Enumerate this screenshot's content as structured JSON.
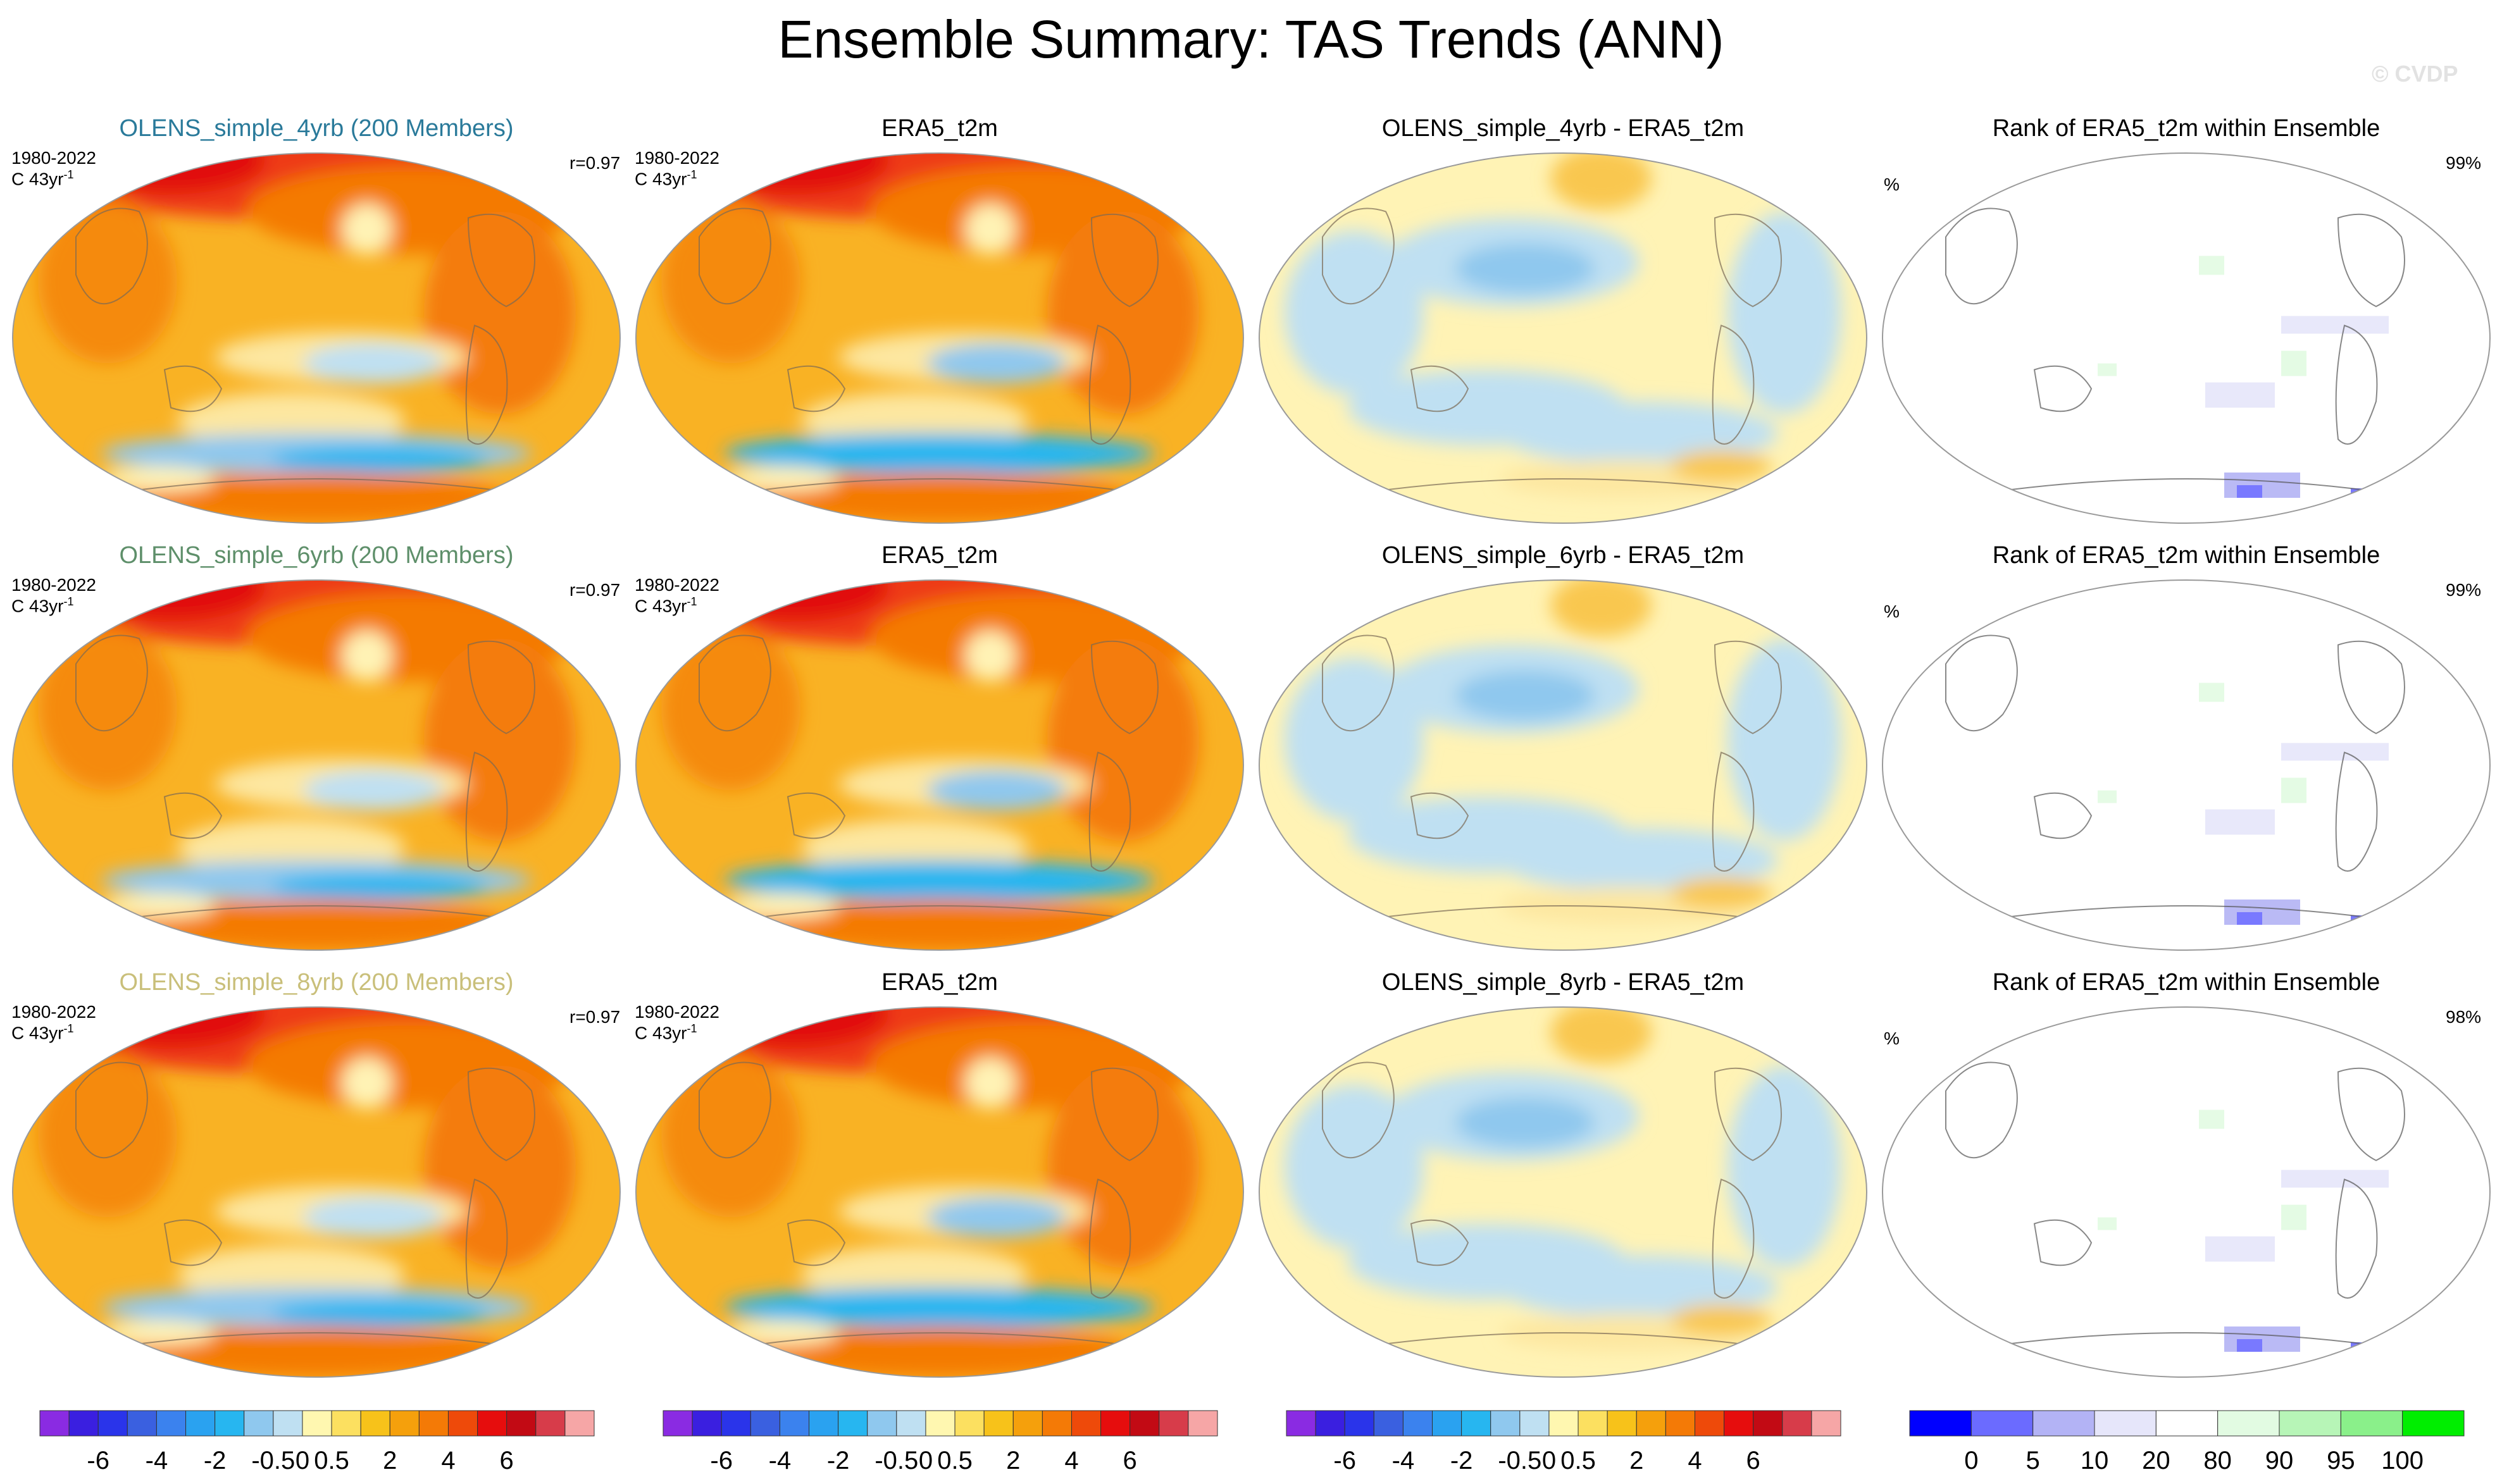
{
  "title": "Ensemble Summary: TAS Trends (ANN)",
  "watermark": "© CVDP",
  "colors": {
    "row_titles": [
      "#2a7a9a",
      "#5e8f6a",
      "#c9bf7a"
    ]
  },
  "rows": [
    {
      "ensemble_title": "OLENS_simple_4yrb (200 Members)",
      "period": "1980-2022",
      "units_prefix": "C 43yr",
      "units_exp": "-1",
      "pattern_corr": "r=0.97",
      "obs_title": "ERA5_t2m",
      "obs_period": "1980-2022",
      "obs_units_prefix": "C 43yr",
      "obs_units_exp": "-1",
      "diff_title": "OLENS_simple_4yrb - ERA5_t2m",
      "rank_title": "Rank of ERA5_t2m within Ensemble",
      "rank_unit": "%",
      "rank_pct": "99%"
    },
    {
      "ensemble_title": "OLENS_simple_6yrb (200 Members)",
      "period": "1980-2022",
      "units_prefix": "C 43yr",
      "units_exp": "-1",
      "pattern_corr": "r=0.97",
      "obs_title": "ERA5_t2m",
      "obs_period": "1980-2022",
      "obs_units_prefix": "C 43yr",
      "obs_units_exp": "-1",
      "diff_title": "OLENS_simple_6yrb - ERA5_t2m",
      "rank_title": "Rank of ERA5_t2m within Ensemble",
      "rank_unit": "%",
      "rank_pct": "99%"
    },
    {
      "ensemble_title": "OLENS_simple_8yrb (200 Members)",
      "period": "1980-2022",
      "units_prefix": "C 43yr",
      "units_exp": "-1",
      "pattern_corr": "r=0.97",
      "obs_title": "ERA5_t2m",
      "obs_period": "1980-2022",
      "obs_units_prefix": "C 43yr",
      "obs_units_exp": "-1",
      "diff_title": "OLENS_simple_8yrb - ERA5_t2m",
      "rank_title": "Rank of ERA5_t2m within Ensemble",
      "rank_unit": "%",
      "rank_pct": "98%"
    }
  ],
  "chart_data": {
    "type": "heatmap",
    "title": "Ensemble Summary: TAS Trends (ANN)",
    "panels_per_row": [
      "ensemble mean trend",
      "observed trend",
      "difference",
      "rank"
    ],
    "trend_colorbar": {
      "colors": [
        "#8a2be2",
        "#3a1fe0",
        "#2a34ea",
        "#3a60e0",
        "#3b82ee",
        "#2aa2f0",
        "#27b6f0",
        "#8fc8ee",
        "#bfe0f2",
        "#fff7b0",
        "#fce060",
        "#f7c21a",
        "#f5a00c",
        "#f47a06",
        "#ee4a0a",
        "#e60d0d",
        "#c20a14",
        "#d73c4a",
        "#f6a6a6"
      ],
      "tick_labels": [
        "-6",
        "-4",
        "-2",
        "-0.5",
        "0",
        "0.5",
        "2",
        "4",
        "6"
      ],
      "tick_boundary_index": [
        2,
        4,
        6,
        8,
        9,
        10,
        12,
        14,
        16
      ]
    },
    "rank_colorbar": {
      "colors": [
        "#0000ff",
        "#6b6bff",
        "#b3b3f5",
        "#e6e6fa",
        "#ffffff",
        "#e2fbe2",
        "#b7f5b7",
        "#8af08a",
        "#00ee00"
      ],
      "tick_labels": [
        "0",
        "5",
        "10",
        "20",
        "80",
        "90",
        "95",
        "100"
      ],
      "tick_boundary_index": [
        1,
        2,
        3,
        4,
        5,
        6,
        7,
        8
      ]
    }
  }
}
